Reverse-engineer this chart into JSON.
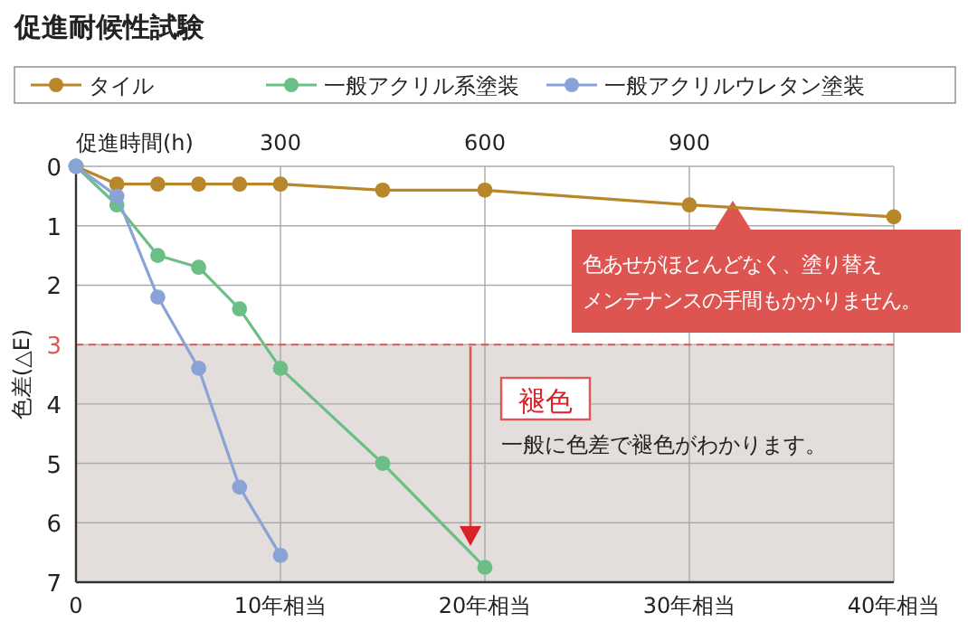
{
  "chart_data": {
    "type": "line",
    "title": "促進耐候性試験",
    "x2label": "促進時間(h)",
    "ylabel": "色差(△E)",
    "xlim": [
      0,
      40
    ],
    "ylim": [
      7,
      0
    ],
    "xticks": [
      0,
      {
        "value": 10,
        "label": "10年相当"
      },
      {
        "value": 20,
        "label": "20年相当"
      },
      {
        "value": 30,
        "label": "30年相当"
      },
      {
        "value": 40,
        "label": "40年相当"
      }
    ],
    "x2lim": [
      0,
      1200
    ],
    "x2ticks": [
      300,
      600,
      900
    ],
    "yticks": [
      0,
      1,
      2,
      3,
      4,
      5,
      6,
      7
    ],
    "grid": true,
    "legend": "top",
    "marker": "circle",
    "line_style": "solid",
    "series": [
      {
        "name": "タイル",
        "color": "#b8862b",
        "x": [
          0,
          2,
          4,
          6,
          8,
          10,
          15,
          20,
          30,
          40
        ],
        "values": [
          0,
          0.3,
          0.3,
          0.3,
          0.3,
          0.3,
          0.4,
          0.4,
          0.65,
          0.85
        ]
      },
      {
        "name": "一般アクリル系塗装",
        "color": "#6bbf86",
        "x": [
          0,
          2,
          4,
          6,
          8,
          10,
          15,
          20
        ],
        "values": [
          0,
          0.65,
          1.5,
          1.7,
          2.4,
          3.4,
          5.0,
          6.75
        ]
      },
      {
        "name": "一般アクリルウレタン塗装",
        "color": "#8aa3d6",
        "x": [
          0,
          2,
          4,
          6,
          8,
          10
        ],
        "values": [
          0,
          0.5,
          2.2,
          3.4,
          5.4,
          6.55
        ]
      }
    ],
    "bands": [
      {
        "axis": "y",
        "from": 3,
        "to": 7,
        "color": "#e3dedb"
      }
    ],
    "ref_lines": [
      {
        "axis": "y",
        "value": 3,
        "color": "#e05555",
        "line_style": "dashed"
      }
    ],
    "annotations": [
      "色あせがほとんどなく、塗り替え",
      "メンテナンスの手間もかかりません。",
      "褪色",
      "一般に色差で褪色がわかります。"
    ]
  }
}
